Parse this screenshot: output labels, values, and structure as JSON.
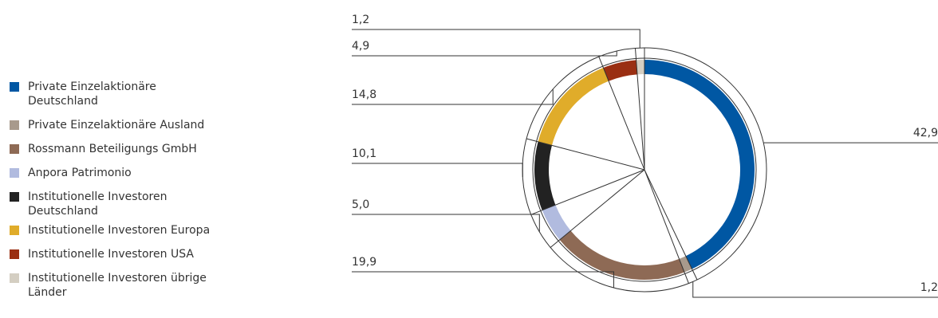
{
  "chart_data": {
    "type": "pie",
    "style": "donut",
    "legend_position": "left",
    "categories": [
      "Private Einzelaktionäre Deutschland",
      "Private Einzelaktionäre Ausland",
      "Rossmann Beteiligungs GmbH",
      "Anpora Patrimonio",
      "Institutionelle Investoren Deutschland",
      "Institutionelle Investoren Europa",
      "Institutionelle Investoren USA",
      "Institutionelle Investoren übrige Länder"
    ],
    "values": [
      42.9,
      1.2,
      19.9,
      5.0,
      10.1,
      14.8,
      4.9,
      1.2
    ],
    "value_labels": [
      "42,9",
      "1,2",
      "19,9",
      "5,0",
      "10,1",
      "14,8",
      "4,9",
      "1,2"
    ],
    "colors": [
      "#0057a3",
      "#a89a8c",
      "#8e6a55",
      "#b1bbdf",
      "#222222",
      "#e0ac2a",
      "#9a2f12",
      "#d4cec2"
    ]
  }
}
